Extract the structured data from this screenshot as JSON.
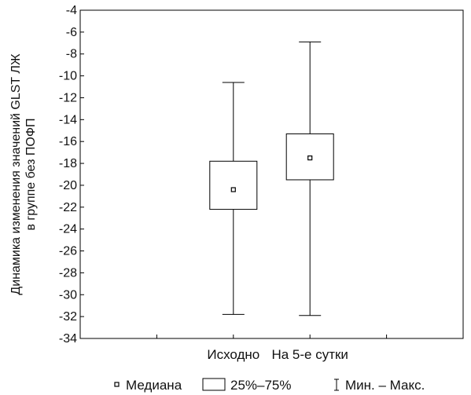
{
  "chart_data": {
    "type": "box",
    "title": "",
    "xlabel": "",
    "ylabel_lines": [
      "Динамика изменения значений GLST ЛЖ",
      "в группе без ПОФП"
    ],
    "ylim": [
      -34,
      -4
    ],
    "yticks": [
      -4,
      -6,
      -8,
      -10,
      -12,
      -14,
      -16,
      -18,
      -20,
      -22,
      -24,
      -26,
      -28,
      -30,
      -32,
      -34
    ],
    "categories": [
      "Исходно",
      "На 5-е сутки"
    ],
    "boxes": [
      {
        "category": "Исходно",
        "min": -31.8,
        "q1": -22.2,
        "median": -20.4,
        "q3": -17.8,
        "max": -10.6
      },
      {
        "category": "На 5-е сутки",
        "min": -31.9,
        "q1": -19.5,
        "median": -17.5,
        "q3": -15.3,
        "max": -6.9
      }
    ],
    "legend": {
      "position": "bottom",
      "entries": [
        {
          "symbol": "median-marker",
          "label": "Медиана"
        },
        {
          "symbol": "box",
          "label": "25%–75%"
        },
        {
          "symbol": "whisker",
          "label": "Мин. – Макс."
        }
      ]
    },
    "colors": {
      "line": "#000000",
      "text": "#111111",
      "background": "#ffffff"
    }
  }
}
